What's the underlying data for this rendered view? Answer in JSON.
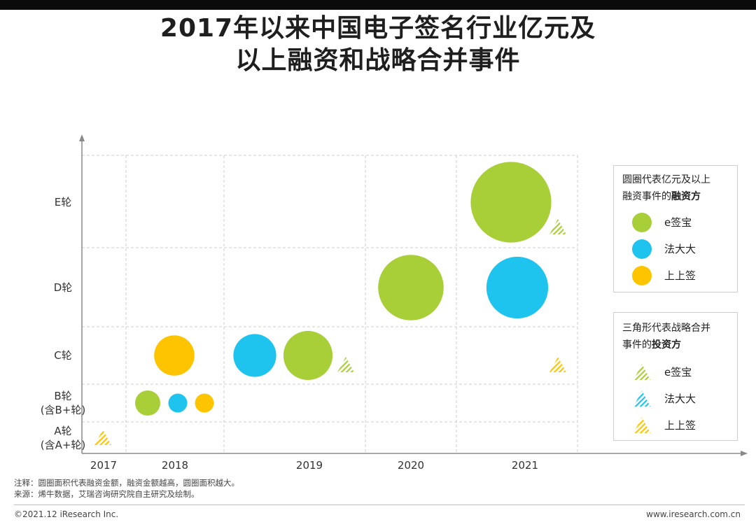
{
  "page": {
    "title_line1": "2017年以来中国电子签名行业亿元及",
    "title_line2": "以上融资和战略合并事件"
  },
  "colors": {
    "e_sign": "#a9cf38",
    "fadada": "#1fc4ee",
    "shangshang": "#ffc400"
  },
  "chart_data": {
    "type": "scatter",
    "title": "2017年以来中国电子签名行业亿元及以上融资和战略合并事件",
    "x_categories": [
      "2017",
      "2018",
      "2019",
      "2020",
      "2021"
    ],
    "y_categories": [
      {
        "key": "A",
        "lines": [
          "A轮",
          "(含A+轮)"
        ]
      },
      {
        "key": "B",
        "lines": [
          "B轮",
          "(含B+轮)"
        ]
      },
      {
        "key": "C",
        "lines": [
          "C轮"
        ]
      },
      {
        "key": "D",
        "lines": [
          "D轮"
        ]
      },
      {
        "key": "E",
        "lines": [
          "E轮"
        ]
      }
    ],
    "series": [
      {
        "name": "e签宝",
        "color_key": "e_sign"
      },
      {
        "name": "法大大",
        "color_key": "fadada"
      },
      {
        "name": "上上签",
        "color_key": "shangshang"
      }
    ],
    "financing_events": [
      {
        "company": "e签宝",
        "year": "2018",
        "round": "B",
        "size": 1.0
      },
      {
        "company": "法大大",
        "year": "2018",
        "round": "B",
        "size": 0.75
      },
      {
        "company": "上上签",
        "year": "2018",
        "round": "B",
        "size": 0.75
      },
      {
        "company": "上上签",
        "year": "2018",
        "round": "C",
        "size": 1.6
      },
      {
        "company": "法大大",
        "year": "2019",
        "round": "C",
        "size": 1.7
      },
      {
        "company": "e签宝",
        "year": "2019",
        "round": "C",
        "size": 1.95
      },
      {
        "company": "e签宝",
        "year": "2020",
        "round": "D",
        "size": 2.6
      },
      {
        "company": "法大大",
        "year": "2021",
        "round": "D",
        "size": 2.45
      },
      {
        "company": "e签宝",
        "year": "2021",
        "round": "E",
        "size": 3.2
      }
    ],
    "strategic_events": [
      {
        "company": "上上签",
        "year": "2017",
        "round": "A"
      },
      {
        "company": "e签宝",
        "year": "2019",
        "round": "C"
      },
      {
        "company": "e签宝",
        "year": "2021",
        "round": "E"
      },
      {
        "company": "上上签",
        "year": "2021",
        "round": "C"
      }
    ]
  },
  "legend_financing": {
    "title_line1": "圆圈代表亿元及以上",
    "title_line2_plain": "融资事件的",
    "title_line2_bold": "融资方",
    "items": [
      "e签宝",
      "法大大",
      "上上签"
    ]
  },
  "legend_strategic": {
    "title_line1": "三角形代表战略合并",
    "title_line2_plain": "事件的",
    "title_line2_bold": "投资方",
    "items": [
      "e签宝",
      "法大大",
      "上上签"
    ]
  },
  "footer": {
    "note": "注释：圆圈面积代表融资金额，融资金额越高，圆圈面积越大。",
    "source": "来源：烯牛数据，艾瑞咨询研究院自主研究及绘制。",
    "copyright": "©2021.12 iResearch Inc.",
    "website": "www.iresearch.com.cn"
  }
}
